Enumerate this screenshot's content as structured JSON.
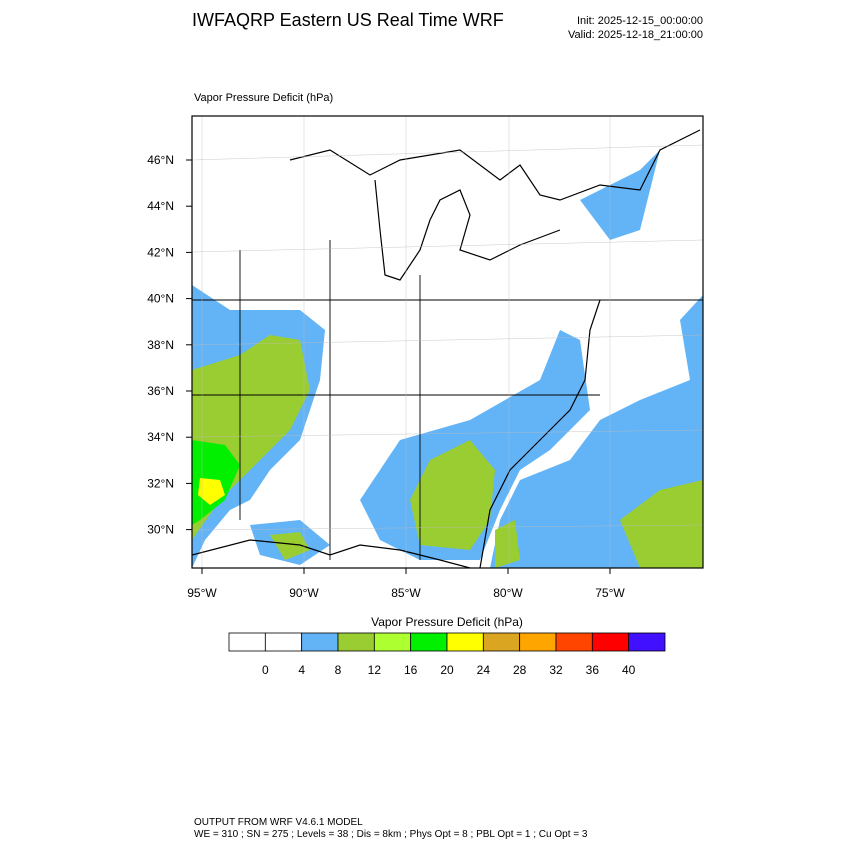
{
  "header": {
    "title": "IWFAQRP Eastern US Real Time WRF",
    "init": "Init: 2025-12-15_00:00:00",
    "valid": "Valid: 2025-12-18_21:00:00"
  },
  "map": {
    "title": "Vapor Pressure Deficit   (hPa)",
    "lat_labels": [
      "46°N",
      "44°N",
      "42°N",
      "40°N",
      "38°N",
      "36°N",
      "34°N",
      "32°N",
      "30°N"
    ],
    "lon_labels": [
      "95°W",
      "90°W",
      "85°W",
      "80°W",
      "75°W"
    ]
  },
  "colorbar": {
    "title": "Vapor Pressure Deficit  (hPa)",
    "colors": [
      "#ffffff",
      "#ffffff",
      "#63b4f7",
      "#9acd32",
      "#adff2f",
      "#00f000",
      "#ffff00",
      "#daa520",
      "#ffa500",
      "#ff4500",
      "#ff0000",
      "#4010ff"
    ],
    "labels": [
      0,
      4,
      8,
      12,
      16,
      20,
      24,
      28,
      32,
      36,
      40
    ]
  },
  "footer": {
    "line1": "OUTPUT FROM WRF V4.6.1 MODEL",
    "line2": "WE = 310 ; SN = 275 ; Levels = 38 ; Dis = 8km ; Phys Opt = 8 ; PBL Opt = 1 ; Cu Opt = 3"
  }
}
